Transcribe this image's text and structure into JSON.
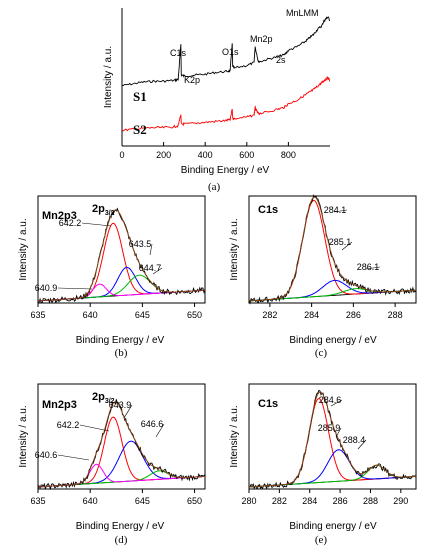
{
  "colors": {
    "experimental": "#000000",
    "fit_envelope": "#8b4513",
    "red_component": "#ff0000",
    "blue_component": "#0000ff",
    "green_component": "#00bb00",
    "magenta_component": "#ff00ff",
    "background": "#000000",
    "s2_spectrum": "#ff0000"
  },
  "chart_data": [
    {
      "panel": "(a)",
      "type": "line",
      "xlabel": "Binding Energy / eV",
      "ylabel": "Intensity / a.u.",
      "xlim": [
        0,
        1000
      ],
      "xticks": [
        0,
        200,
        400,
        600,
        800
      ],
      "series": [
        {
          "name": "S1",
          "x": [
            0,
            50,
            100,
            150,
            200,
            250,
            270,
            283,
            285,
            300,
            350,
            400,
            450,
            500,
            520,
            530,
            532,
            540,
            600,
            635,
            640,
            642,
            655,
            660,
            700,
            750,
            780,
            800,
            840,
            880,
            900,
            920,
            940,
            960,
            970,
            980,
            990,
            1000
          ],
          "y": [
            0.22,
            0.24,
            0.26,
            0.27,
            0.27,
            0.28,
            0.29,
            0.68,
            0.34,
            0.33,
            0.34,
            0.35,
            0.37,
            0.38,
            0.39,
            0.7,
            0.44,
            0.42,
            0.45,
            0.48,
            0.66,
            0.64,
            0.5,
            0.49,
            0.52,
            0.55,
            0.57,
            0.62,
            0.66,
            0.72,
            0.76,
            0.8,
            0.86,
            0.9,
            0.95,
            0.98,
            1.0,
            0.96
          ]
        },
        {
          "name": "S2",
          "x": [
            0,
            50,
            100,
            150,
            200,
            250,
            270,
            283,
            285,
            300,
            350,
            400,
            450,
            500,
            520,
            530,
            532,
            540,
            600,
            635,
            640,
            642,
            655,
            660,
            700,
            750,
            780,
            800,
            840,
            880,
            900,
            920,
            940,
            960,
            970,
            980,
            990,
            1000
          ],
          "y": [
            0.02,
            0.03,
            0.04,
            0.05,
            0.05,
            0.06,
            0.07,
            0.2,
            0.09,
            0.09,
            0.1,
            0.11,
            0.12,
            0.13,
            0.14,
            0.26,
            0.16,
            0.15,
            0.17,
            0.19,
            0.28,
            0.26,
            0.21,
            0.21,
            0.23,
            0.26,
            0.28,
            0.32,
            0.36,
            0.42,
            0.45,
            0.48,
            0.52,
            0.56,
            0.58,
            0.6,
            0.62,
            0.58
          ]
        }
      ],
      "annotations": [
        "C1s",
        "K2p",
        "O1s",
        "Mn2p",
        "2s",
        "MnLMM"
      ],
      "series_labels": [
        "S1",
        "S2"
      ]
    },
    {
      "panel": "(b)",
      "type": "line",
      "title": "Mn2p3",
      "xlabel": "Binding Energy / eV",
      "ylabel": "Intensity / a.u.",
      "xlim": [
        635,
        651
      ],
      "xticks": [
        635,
        640,
        645,
        650
      ],
      "peak_label": "2p",
      "peak_label_sub": "3/2",
      "components": [
        {
          "color": "red_component",
          "center": 642.2,
          "height": 0.68,
          "width": 1.3
        },
        {
          "color": "blue_component",
          "center": 643.5,
          "height": 0.26,
          "width": 1.2
        },
        {
          "color": "green_component",
          "center": 644.7,
          "height": 0.18,
          "width": 1.5
        },
        {
          "color": "magenta_component",
          "center": 640.9,
          "height": 0.12,
          "width": 0.9
        }
      ],
      "annotations": [
        "642.2",
        "643.5",
        "644.7",
        "640.9"
      ]
    },
    {
      "panel": "(c)",
      "type": "line",
      "title": "C1s",
      "xlabel": "Binding energy / eV",
      "ylabel": "Intensity / a.u.",
      "xlim": [
        281,
        289
      ],
      "xticks": [
        282,
        284,
        286,
        288
      ],
      "components": [
        {
          "color": "red_component",
          "center": 284.1,
          "height": 0.9,
          "width": 0.75
        },
        {
          "color": "blue_component",
          "center": 285.1,
          "height": 0.14,
          "width": 0.8
        },
        {
          "color": "green_component",
          "center": 286.1,
          "height": 0.05,
          "width": 0.8
        }
      ],
      "annotations": [
        "284.1",
        "285.1",
        "286.1"
      ]
    },
    {
      "panel": "(d)",
      "type": "line",
      "title": "Mn2p3",
      "xlabel": "Binding Energy / eV",
      "ylabel": "Intensity / a.u.",
      "xlim": [
        635,
        651
      ],
      "xticks": [
        635,
        640,
        645,
        650
      ],
      "peak_label": "2p",
      "peak_label_sub": "3/2",
      "components": [
        {
          "color": "red_component",
          "center": 642.2,
          "height": 0.62,
          "width": 1.2
        },
        {
          "color": "blue_component",
          "center": 643.9,
          "height": 0.38,
          "width": 1.6
        },
        {
          "color": "green_component",
          "center": 646.6,
          "height": 0.08,
          "width": 1.2
        },
        {
          "color": "magenta_component",
          "center": 640.6,
          "height": 0.18,
          "width": 0.9
        }
      ],
      "annotations": [
        "642.2",
        "643.9",
        "646.6",
        "640.6"
      ]
    },
    {
      "panel": "(e)",
      "type": "line",
      "title": "C1s",
      "xlabel": "Binding energy / eV",
      "ylabel": "Intensity / a.u.",
      "xlim": [
        280,
        291
      ],
      "xticks": [
        280,
        282,
        284,
        286,
        288,
        290
      ],
      "components": [
        {
          "color": "red_component",
          "center": 284.6,
          "height": 0.8,
          "width": 0.9
        },
        {
          "color": "blue_component",
          "center": 285.9,
          "height": 0.3,
          "width": 1.0
        },
        {
          "color": "green_component",
          "center": 288.4,
          "height": 0.13,
          "width": 0.8
        }
      ],
      "annotations": [
        "284.6",
        "285.9",
        "288.4"
      ]
    }
  ]
}
